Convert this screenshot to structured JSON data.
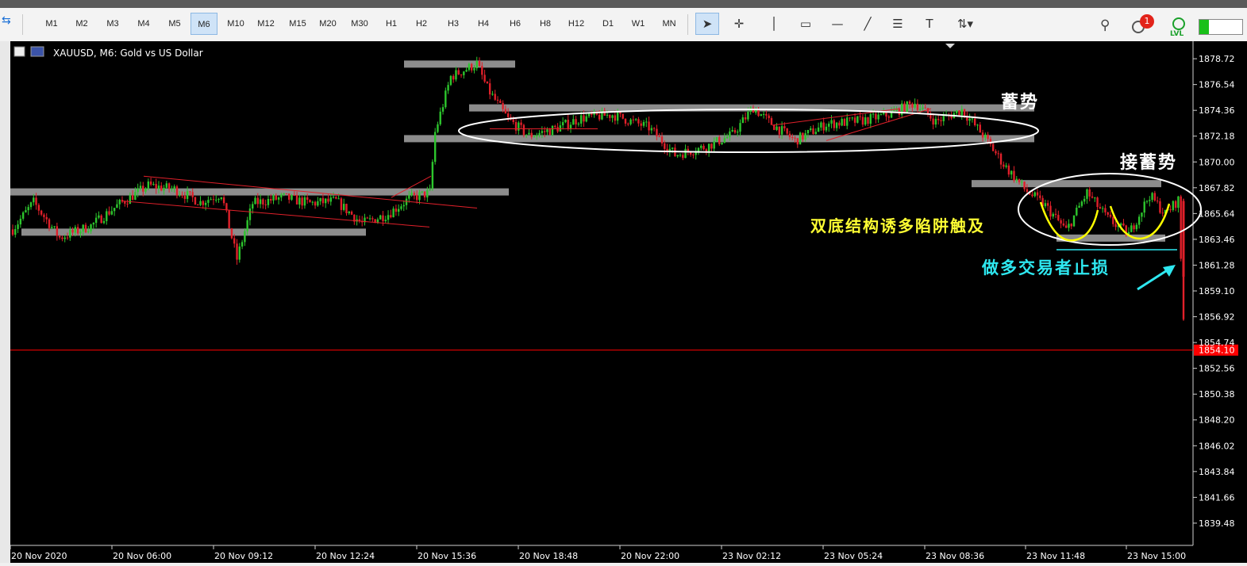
{
  "toolbar": {
    "timeframes": [
      "M1",
      "M2",
      "M3",
      "M4",
      "M5",
      "M6",
      "M10",
      "M12",
      "M15",
      "M20",
      "M30",
      "H1",
      "H2",
      "H3",
      "H4",
      "H6",
      "H8",
      "H12",
      "D1",
      "W1",
      "MN"
    ],
    "active_timeframe": "M6",
    "tools": [
      "cursor-icon",
      "crosshair-icon",
      "vertical-line-icon",
      "rectangle-icon",
      "horizontal-line-icon",
      "trend-line-icon",
      "fibonacci-icon",
      "text-icon",
      "arrows-icon"
    ],
    "notification_count": "1",
    "level_badge": "LVL"
  },
  "chart_data": {
    "type": "candlestick",
    "title": "XAUUSD, M6:  Gold vs US Dollar",
    "symbol": "XAUUSD",
    "timeframe": "M6",
    "description": "Gold vs US Dollar",
    "ylim": [
      1837.6,
      1880.2
    ],
    "y_ticks": [
      "1878.72",
      "1876.54",
      "1874.36",
      "1872.18",
      "1870.00",
      "1867.82",
      "1865.64",
      "1863.46",
      "1861.28",
      "1859.10",
      "1856.92",
      "1854.74",
      "1852.56",
      "1850.38",
      "1848.20",
      "1846.02",
      "1843.84",
      "1841.66",
      "1839.48"
    ],
    "x_ticks": [
      "20 Nov 2020",
      "20 Nov 06:00",
      "20 Nov 09:12",
      "20 Nov 12:24",
      "20 Nov 15:36",
      "20 Nov 18:48",
      "20 Nov 22:00",
      "23 Nov 02:12",
      "23 Nov 05:24",
      "23 Nov 08:36",
      "23 Nov 11:48",
      "23 Nov 15:00"
    ],
    "current_price": 1854.1,
    "current_price_label": "1854.10",
    "price_path": [
      {
        "i": 0,
        "p": 1864.3
      },
      {
        "i": 8,
        "p": 1866.6
      },
      {
        "i": 18,
        "p": 1863.6
      },
      {
        "i": 30,
        "p": 1864.6
      },
      {
        "i": 40,
        "p": 1866.3
      },
      {
        "i": 52,
        "p": 1868.0
      },
      {
        "i": 62,
        "p": 1867.7
      },
      {
        "i": 72,
        "p": 1866.6
      },
      {
        "i": 80,
        "p": 1867.3
      },
      {
        "i": 86,
        "p": 1861.8
      },
      {
        "i": 92,
        "p": 1866.5
      },
      {
        "i": 104,
        "p": 1867.0
      },
      {
        "i": 114,
        "p": 1866.5
      },
      {
        "i": 124,
        "p": 1866.7
      },
      {
        "i": 134,
        "p": 1864.8
      },
      {
        "i": 144,
        "p": 1865.6
      },
      {
        "i": 152,
        "p": 1866.9
      },
      {
        "i": 160,
        "p": 1867.4
      },
      {
        "i": 162,
        "p": 1872.5
      },
      {
        "i": 168,
        "p": 1877.2
      },
      {
        "i": 178,
        "p": 1878.3
      },
      {
        "i": 182,
        "p": 1876.2
      },
      {
        "i": 190,
        "p": 1873.6
      },
      {
        "i": 198,
        "p": 1872.2
      },
      {
        "i": 208,
        "p": 1872.8
      },
      {
        "i": 218,
        "p": 1873.7
      },
      {
        "i": 230,
        "p": 1874.0
      },
      {
        "i": 244,
        "p": 1872.9
      },
      {
        "i": 254,
        "p": 1870.6
      },
      {
        "i": 266,
        "p": 1871.3
      },
      {
        "i": 276,
        "p": 1872.3
      },
      {
        "i": 284,
        "p": 1874.6
      },
      {
        "i": 290,
        "p": 1873.4
      },
      {
        "i": 300,
        "p": 1871.8
      },
      {
        "i": 312,
        "p": 1873.2
      },
      {
        "i": 326,
        "p": 1873.5
      },
      {
        "i": 336,
        "p": 1874.0
      },
      {
        "i": 346,
        "p": 1875.0
      },
      {
        "i": 354,
        "p": 1873.4
      },
      {
        "i": 364,
        "p": 1874.4
      },
      {
        "i": 372,
        "p": 1872.3
      },
      {
        "i": 380,
        "p": 1869.8
      },
      {
        "i": 388,
        "p": 1867.7
      },
      {
        "i": 396,
        "p": 1866.3
      },
      {
        "i": 404,
        "p": 1864.2
      },
      {
        "i": 412,
        "p": 1867.4
      },
      {
        "i": 420,
        "p": 1865.2
      },
      {
        "i": 428,
        "p": 1863.9
      },
      {
        "i": 436,
        "p": 1867.2
      },
      {
        "i": 442,
        "p": 1865.6
      },
      {
        "i": 447,
        "p": 1866.8
      },
      {
        "i": 449,
        "p": 1856.9
      }
    ],
    "annotations": [
      {
        "kind": "text",
        "label": "蓄势",
        "color": "#ffffff"
      },
      {
        "kind": "text",
        "label": "接蓄势",
        "color": "#ffffff"
      },
      {
        "kind": "text",
        "label": "双底结构诱多陷阱触及",
        "color": "#ffff33"
      },
      {
        "kind": "text",
        "label": "做多交易者止损",
        "color": "#2ee8f0"
      }
    ],
    "support_resistance_levels": [
      1864.1,
      1867.5,
      1868.2,
      1872.0,
      1874.6,
      1878.3,
      1863.6
    ],
    "colors": {
      "background": "#000000",
      "bull": "#2dc62d",
      "bear": "#e0202a",
      "level_zone": "#8c8c8c",
      "axis_text": "#ffffff",
      "price_line": "#ff0000"
    }
  }
}
